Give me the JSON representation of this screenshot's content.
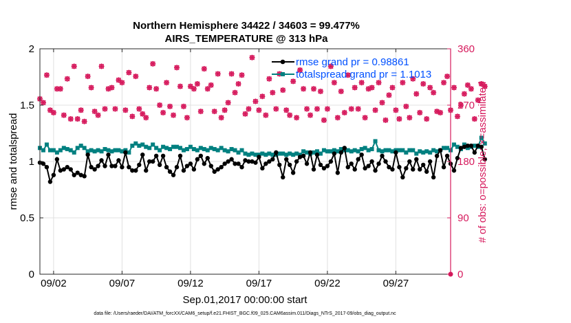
{
  "chart_data": {
    "type": "line",
    "title_line1": "Northern Hemisphere 34422 / 34603 = 99.477%",
    "title_line2": "AIRS_TEMPERATURE @ 313 hPa",
    "xlabel": "Sep.01,2017 00:00:00 start",
    "ylabel_left": "rmse and totalspread",
    "ylabel_right": "# of obs: o=possible; ×=assimilated",
    "footer": "data file: /Users/raeder/DAI/ATM_forcXX/CAM6_setup/f.e21.FHIST_BGC.f09_025.CAM6assim.011/Diags_NTrS_2017-09/obs_diag_output.nc",
    "xlim": [
      1,
      31
    ],
    "ylim_left": [
      0,
      2
    ],
    "ylim_right": [
      0,
      360
    ],
    "x_ticks": [
      {
        "day": 2,
        "label": "09/02"
      },
      {
        "day": 7,
        "label": "09/07"
      },
      {
        "day": 12,
        "label": "09/12"
      },
      {
        "day": 17,
        "label": "09/17"
      },
      {
        "day": 22,
        "label": "09/22"
      },
      {
        "day": 27,
        "label": "09/27"
      }
    ],
    "y_ticks_left": [
      {
        "value": 0,
        "label": "0"
      },
      {
        "value": 0.5,
        "label": "0.5"
      },
      {
        "value": 1,
        "label": "1"
      },
      {
        "value": 1.5,
        "label": "1.5"
      },
      {
        "value": 2,
        "label": "2"
      }
    ],
    "y_ticks_right": [
      {
        "value": 0,
        "label": "0"
      },
      {
        "value": 90,
        "label": "90"
      },
      {
        "value": 180,
        "label": "180"
      },
      {
        "value": 270,
        "label": "270"
      },
      {
        "value": 360,
        "label": "360"
      }
    ],
    "legend": [
      {
        "label": "rmse grand pr = 0.98861",
        "color": "#000000"
      },
      {
        "label": "totalspread grand pr = 1.1013",
        "color": "#008080"
      }
    ],
    "colors": {
      "rmse": "#000000",
      "spread": "#008080",
      "obs": "#d6195c",
      "legend_text": "#0050ff",
      "grid": "#e0e0e0"
    },
    "series": [
      {
        "name": "rmse",
        "x_start": 1.0,
        "x_step": 0.25,
        "values": [
          0.99,
          0.98,
          0.95,
          0.82,
          0.88,
          1.02,
          0.92,
          0.93,
          0.95,
          0.93,
          0.88,
          0.9,
          0.88,
          0.87,
          1.06,
          0.95,
          0.93,
          0.96,
          1.01,
          0.96,
          1.06,
          0.96,
          0.96,
          1.01,
          0.95,
          1.08,
          0.95,
          0.92,
          0.92,
          0.97,
          1.06,
          0.92,
          1.0,
          1.0,
          1.05,
          0.97,
          1.05,
          0.95,
          0.91,
          0.88,
          0.95,
          1.05,
          0.92,
          0.96,
          0.98,
          0.93,
          1.02,
          1.05,
          0.98,
          1.03,
          0.96,
          0.91,
          0.93,
          0.95,
          0.98,
          1.0,
          1.02,
          0.98,
          0.98,
          0.95,
          1.01,
          1.0,
          1.0,
          0.99,
          1.04,
          0.94,
          0.98,
          1.0,
          1.02,
          1.08,
          0.97,
          0.86,
          1.02,
          0.97,
          0.9,
          1.0,
          1.04,
          1.05,
          0.98,
          1.08,
          0.93,
          1.06,
          0.97,
          0.94,
          0.96,
          1.0,
          1.07,
          0.9,
          1.08,
          1.12,
          0.95,
          0.98,
          0.93,
          1.02,
          1.06,
          0.94,
          0.96,
          1.0,
          0.92,
          0.98,
          1.05,
          1.0,
          0.95,
          0.93,
          1.08,
          0.95,
          0.86,
          0.94,
          1.0,
          0.93,
          1.02,
          0.93,
          0.97,
          0.91,
          1.0,
          0.86,
          1.05,
          1.1,
          0.95,
          1.05,
          0.98,
          0.92,
          1.03,
          1.12,
          1.13,
          1.14,
          1.14,
          1.08,
          1.14,
          1.13,
          1.02
        ]
      },
      {
        "name": "totalspread",
        "x_start": 1.0,
        "x_step": 0.25,
        "values": [
          1.12,
          1.1,
          1.15,
          1.1,
          1.1,
          1.08,
          1.1,
          1.12,
          1.11,
          1.1,
          1.08,
          1.12,
          1.14,
          1.12,
          1.09,
          1.1,
          1.09,
          1.1,
          1.09,
          1.11,
          1.1,
          1.09,
          1.1,
          1.1,
          1.09,
          1.1,
          1.08,
          1.14,
          1.16,
          1.14,
          1.15,
          1.13,
          1.12,
          1.15,
          1.12,
          1.1,
          1.13,
          1.12,
          1.11,
          1.13,
          1.13,
          1.12,
          1.1,
          1.11,
          1.13,
          1.11,
          1.1,
          1.12,
          1.11,
          1.1,
          1.12,
          1.11,
          1.1,
          1.12,
          1.1,
          1.09,
          1.11,
          1.1,
          1.08,
          1.1,
          1.07,
          1.06,
          1.07,
          1.06,
          1.06,
          1.07,
          1.06,
          1.07,
          1.06,
          1.06,
          1.07,
          1.07,
          1.06,
          1.07,
          1.06,
          1.07,
          1.06,
          1.09,
          1.08,
          1.07,
          1.08,
          1.09,
          1.07,
          1.1,
          1.09,
          1.09,
          1.1,
          1.09,
          1.11,
          1.1,
          1.1,
          1.09,
          1.1,
          1.09,
          1.11,
          1.12,
          1.1,
          1.11,
          1.18,
          1.1,
          1.09,
          1.1,
          1.1,
          1.09,
          1.1,
          1.1,
          1.1,
          1.08,
          1.1,
          1.1,
          1.07,
          1.09,
          1.08,
          1.09,
          1.08,
          1.1,
          1.09,
          1.1,
          1.12,
          1.12,
          1.1,
          1.15,
          1.13,
          1.11,
          1.15,
          1.12,
          1.13,
          1.14,
          1.13,
          1.21,
          1.16
        ]
      }
    ],
    "obs_count_markers": {
      "x_start": 1.0,
      "x_step": 0.25,
      "values": [
        280,
        274,
        318,
        262,
        258,
        296,
        296,
        254,
        312,
        248,
        332,
        248,
        262,
        244,
        316,
        298,
        260,
        254,
        332,
        264,
        296,
        298,
        264,
        310,
        306,
        262,
        322,
        252,
        316,
        264,
        256,
        250,
        298,
        336,
        296,
        270,
        258,
        306,
        268,
        254,
        330,
        300,
        268,
        250,
        300,
        296,
        304,
        260,
        328,
        296,
        302,
        260,
        320,
        250,
        262,
        274,
        320,
        290,
        304,
        318,
        256,
        264,
        346,
        276,
        262,
        284,
        254,
        312,
        290,
        264,
        320,
        294,
        262,
        254,
        308,
        250,
        326,
        296,
        264,
        254,
        296,
        264,
        292,
        246,
        264,
        332,
        306,
        250,
        292,
        258,
        318,
        264,
        298,
        264,
        306,
        250,
        296,
        298,
        262,
        306,
        274,
        246,
        286,
        298,
        262,
        248,
        306,
        268,
        250,
        312,
        288,
        258,
        304,
        248,
        298,
        290,
        260,
        258,
        306,
        316,
        262,
        298,
        252,
        270,
        288,
        302,
        296,
        248,
        278,
        304,
        300
      ]
    }
  }
}
